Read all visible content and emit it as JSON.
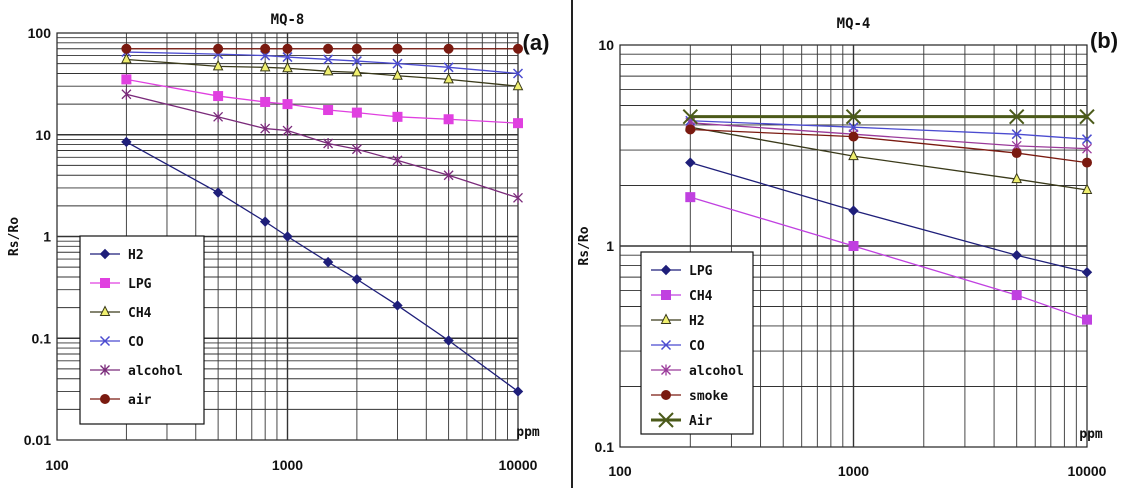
{
  "chart_data": [
    {
      "type": "line",
      "title": "MQ-8",
      "panel_label": "(a)",
      "xlabel": "ppm",
      "ylabel": "Rs/Ro",
      "x_scale": "log",
      "y_scale": "log",
      "xlim": [
        100,
        10000
      ],
      "ylim": [
        0.01,
        100
      ],
      "x_ticks": [
        "100",
        "1000",
        "10000"
      ],
      "y_ticks": [
        "0.01",
        "0.1",
        "1",
        "10",
        "100"
      ],
      "grid": true,
      "legend_position": "bottom-left",
      "series": [
        {
          "name": "H2",
          "color": "#1f1f7a",
          "marker": "diamond",
          "x": [
            200,
            500,
            800,
            1000,
            1500,
            2000,
            3000,
            5000,
            10000
          ],
          "y": [
            8.5,
            2.7,
            1.4,
            1.0,
            0.56,
            0.38,
            0.21,
            0.095,
            0.03
          ]
        },
        {
          "name": "LPG",
          "color": "#e040e0",
          "marker": "square",
          "x": [
            200,
            500,
            800,
            1000,
            1500,
            2000,
            3000,
            5000,
            10000
          ],
          "y": [
            35,
            24,
            21,
            20,
            17.5,
            16.5,
            15,
            14.2,
            13
          ]
        },
        {
          "name": "CH4",
          "color": "#3a3a1a",
          "marker": "triangle",
          "x": [
            200,
            500,
            800,
            1000,
            1500,
            2000,
            3000,
            5000,
            10000
          ],
          "y": [
            55,
            47,
            46,
            45,
            42,
            41,
            38,
            35,
            30
          ]
        },
        {
          "name": "CO",
          "color": "#4b4bd0",
          "marker": "x",
          "x": [
            200,
            500,
            800,
            1000,
            1500,
            2000,
            3000,
            5000,
            10000
          ],
          "y": [
            65,
            62,
            60,
            58,
            55,
            53,
            50,
            46,
            40
          ]
        },
        {
          "name": "alcohol",
          "color": "#7a2a7a",
          "marker": "star",
          "x": [
            200,
            500,
            800,
            1000,
            1500,
            2000,
            3000,
            5000,
            10000
          ],
          "y": [
            25,
            15,
            11.5,
            11,
            8.2,
            7.2,
            5.6,
            4.0,
            2.4
          ]
        },
        {
          "name": "air",
          "color": "#7a1a10",
          "marker": "circle",
          "x": [
            200,
            500,
            800,
            1000,
            1500,
            2000,
            3000,
            5000,
            10000
          ],
          "y": [
            70,
            70,
            70,
            70,
            70,
            70,
            70,
            70,
            70
          ]
        }
      ]
    },
    {
      "type": "line",
      "title": "MQ-4",
      "panel_label": "(b)",
      "xlabel": "ppm",
      "ylabel": "Rs/Ro",
      "x_scale": "log",
      "y_scale": "log",
      "xlim": [
        100,
        10000
      ],
      "ylim": [
        0.1,
        10
      ],
      "x_ticks": [
        "100",
        "1000",
        "10000"
      ],
      "y_ticks": [
        "0.1",
        "1",
        "10"
      ],
      "grid": true,
      "legend_position": "bottom-left",
      "series": [
        {
          "name": "LPG",
          "color": "#1f1f7a",
          "marker": "diamond",
          "x": [
            200,
            1000,
            5000,
            10000
          ],
          "y": [
            2.6,
            1.5,
            0.9,
            0.74
          ]
        },
        {
          "name": "CH4",
          "color": "#c040e0",
          "marker": "square",
          "x": [
            200,
            1000,
            5000,
            10000
          ],
          "y": [
            1.75,
            1.0,
            0.57,
            0.43
          ]
        },
        {
          "name": "H2",
          "color": "#3a3a1a",
          "marker": "triangle",
          "x": [
            200,
            1000,
            5000,
            10000
          ],
          "y": [
            3.9,
            2.8,
            2.15,
            1.9
          ]
        },
        {
          "name": "CO",
          "color": "#4b4bd0",
          "marker": "x",
          "x": [
            200,
            1000,
            5000,
            10000
          ],
          "y": [
            4.2,
            3.9,
            3.6,
            3.4
          ]
        },
        {
          "name": "alcohol",
          "color": "#9a3a9a",
          "marker": "star",
          "x": [
            200,
            1000,
            5000,
            10000
          ],
          "y": [
            4.1,
            3.6,
            3.15,
            3.05
          ]
        },
        {
          "name": "smoke",
          "color": "#7a1a10",
          "marker": "circle",
          "x": [
            200,
            1000,
            5000,
            10000
          ],
          "y": [
            3.8,
            3.5,
            2.9,
            2.6
          ]
        },
        {
          "name": "Air",
          "color": "#4b5a1a",
          "marker": "bigx",
          "x": [
            200,
            1000,
            5000,
            10000
          ],
          "y": [
            4.4,
            4.4,
            4.4,
            4.4
          ]
        }
      ]
    }
  ]
}
